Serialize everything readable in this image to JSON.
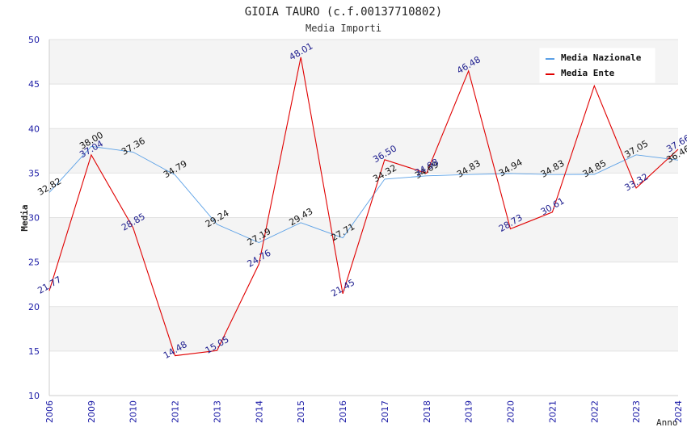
{
  "chart_data": {
    "type": "line",
    "title": "GIOIA TAURO (c.f.00137710802)",
    "subtitle": "Media Importi",
    "xlabel": "Anno",
    "ylabel": "Media",
    "ylim": [
      10,
      50
    ],
    "yticks": [
      10,
      15,
      20,
      25,
      30,
      35,
      40,
      45,
      50
    ],
    "grid": true,
    "legend_position": "top-right",
    "categories": [
      "2006",
      "2009",
      "2010",
      "2012",
      "2013",
      "2014",
      "2015",
      "2016",
      "2017",
      "2018",
      "2019",
      "2020",
      "2021",
      "2022",
      "2023",
      "2024"
    ],
    "series": [
      {
        "name": "Media Nazionale",
        "color": "#5aa0e6",
        "values": [
          32.82,
          38.0,
          37.36,
          34.79,
          29.24,
          27.19,
          29.43,
          27.71,
          34.32,
          34.69,
          34.83,
          34.94,
          34.83,
          34.85,
          37.05,
          36.46
        ],
        "labels": [
          "32.82",
          "38.00",
          "37.36",
          "34.79",
          "29.24",
          "27.19",
          "29.43",
          "27.71",
          "34.32",
          "34.69",
          "34.83",
          "34.94",
          "34.83",
          "34.85",
          "37.05",
          "36.46"
        ]
      },
      {
        "name": "Media Ente",
        "color": "#e00000",
        "values": [
          21.77,
          37.04,
          28.85,
          14.48,
          15.05,
          24.76,
          48.01,
          21.45,
          36.5,
          34.98,
          46.48,
          28.73,
          30.61,
          44.8,
          33.32,
          37.66
        ],
        "labels": [
          "21.77",
          "37.04",
          "28.85",
          "14.48",
          "15.05",
          "24.76",
          "48.01",
          "21.45",
          "36.50",
          "34.98",
          "46.48",
          "28.73",
          "30.61",
          "",
          "33.32",
          "37.66"
        ]
      }
    ]
  }
}
